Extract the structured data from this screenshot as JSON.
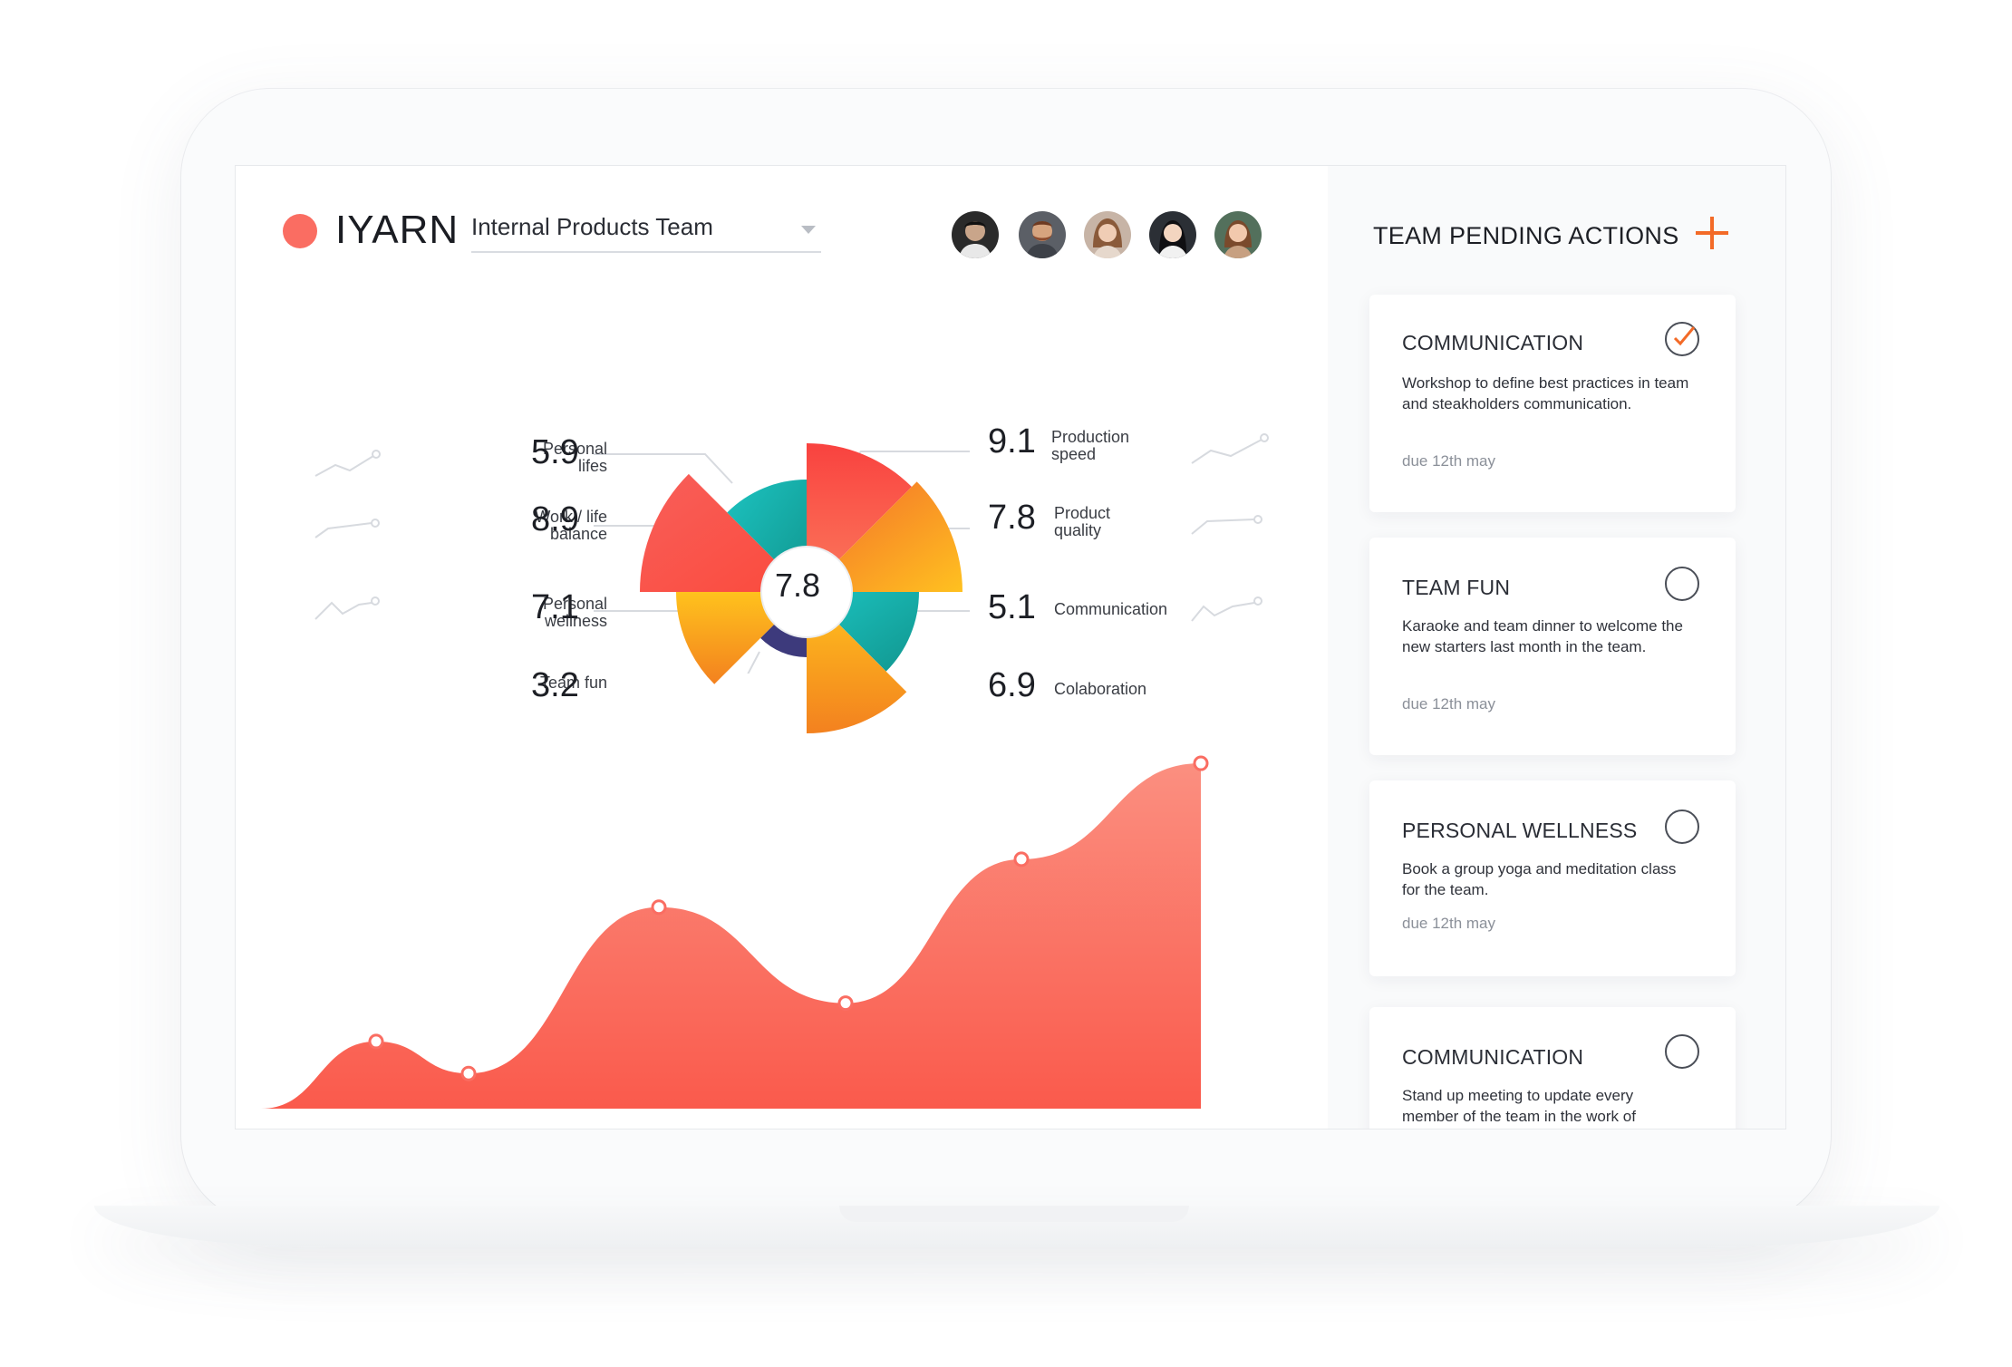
{
  "header": {
    "brand": "IYARN",
    "team_select_value": "Internal Products Team"
  },
  "colors": {
    "accent_red": "#fa6d62",
    "accent_orange": "#f36a27",
    "teal": "#1ab4b0",
    "yellow": "#ffbc1f"
  },
  "overall_score": "7.8",
  "metrics_left": [
    {
      "label_line1": "Personal",
      "label_line2": "lifes",
      "value": "5.9"
    },
    {
      "label_line1": "Work / life",
      "label_line2": "balance",
      "value": "8.9"
    },
    {
      "label_line1": "Personal",
      "label_line2": "wellness",
      "value": "7.1"
    },
    {
      "label_line1": "Team fun",
      "label_line2": "",
      "value": "3.2"
    }
  ],
  "metrics_right": [
    {
      "label_line1": "Production",
      "label_line2": "speed",
      "value": "9.1"
    },
    {
      "label_line1": "Product",
      "label_line2": "quality",
      "value": "7.8"
    },
    {
      "label_line1": "Communication",
      "label_line2": "",
      "value": "5.1"
    },
    {
      "label_line1": "Colaboration",
      "label_line2": "",
      "value": "6.9"
    }
  ],
  "side": {
    "title": "TEAM PENDING ACTIONS",
    "actions": [
      {
        "title": "COMMUNICATION",
        "desc": "Workshop to define best practices in team and steakholders communication.",
        "due": "due 12th may",
        "done": true
      },
      {
        "title": "TEAM FUN",
        "desc": "Karaoke and team dinner to welcome the new starters last month in the team.",
        "due": "due 12th may",
        "done": false
      },
      {
        "title": "PERSONAL WELLNESS",
        "desc": "Book a group yoga and meditation class for the team.",
        "due": "due 12th may",
        "done": false
      },
      {
        "title": "COMMUNICATION",
        "desc": "Stand up meeting to update every member of the team in the work of",
        "due": "",
        "done": false
      }
    ]
  },
  "chart_data": {
    "type": "area",
    "x": [
      1,
      2,
      3,
      4,
      5,
      6,
      7
    ],
    "series": [
      {
        "values": [
          2.1,
          1.1,
          6.3,
          3.3,
          7.8,
          10.8,
          0
        ]
      }
    ],
    "ylim": [
      0,
      11
    ]
  }
}
